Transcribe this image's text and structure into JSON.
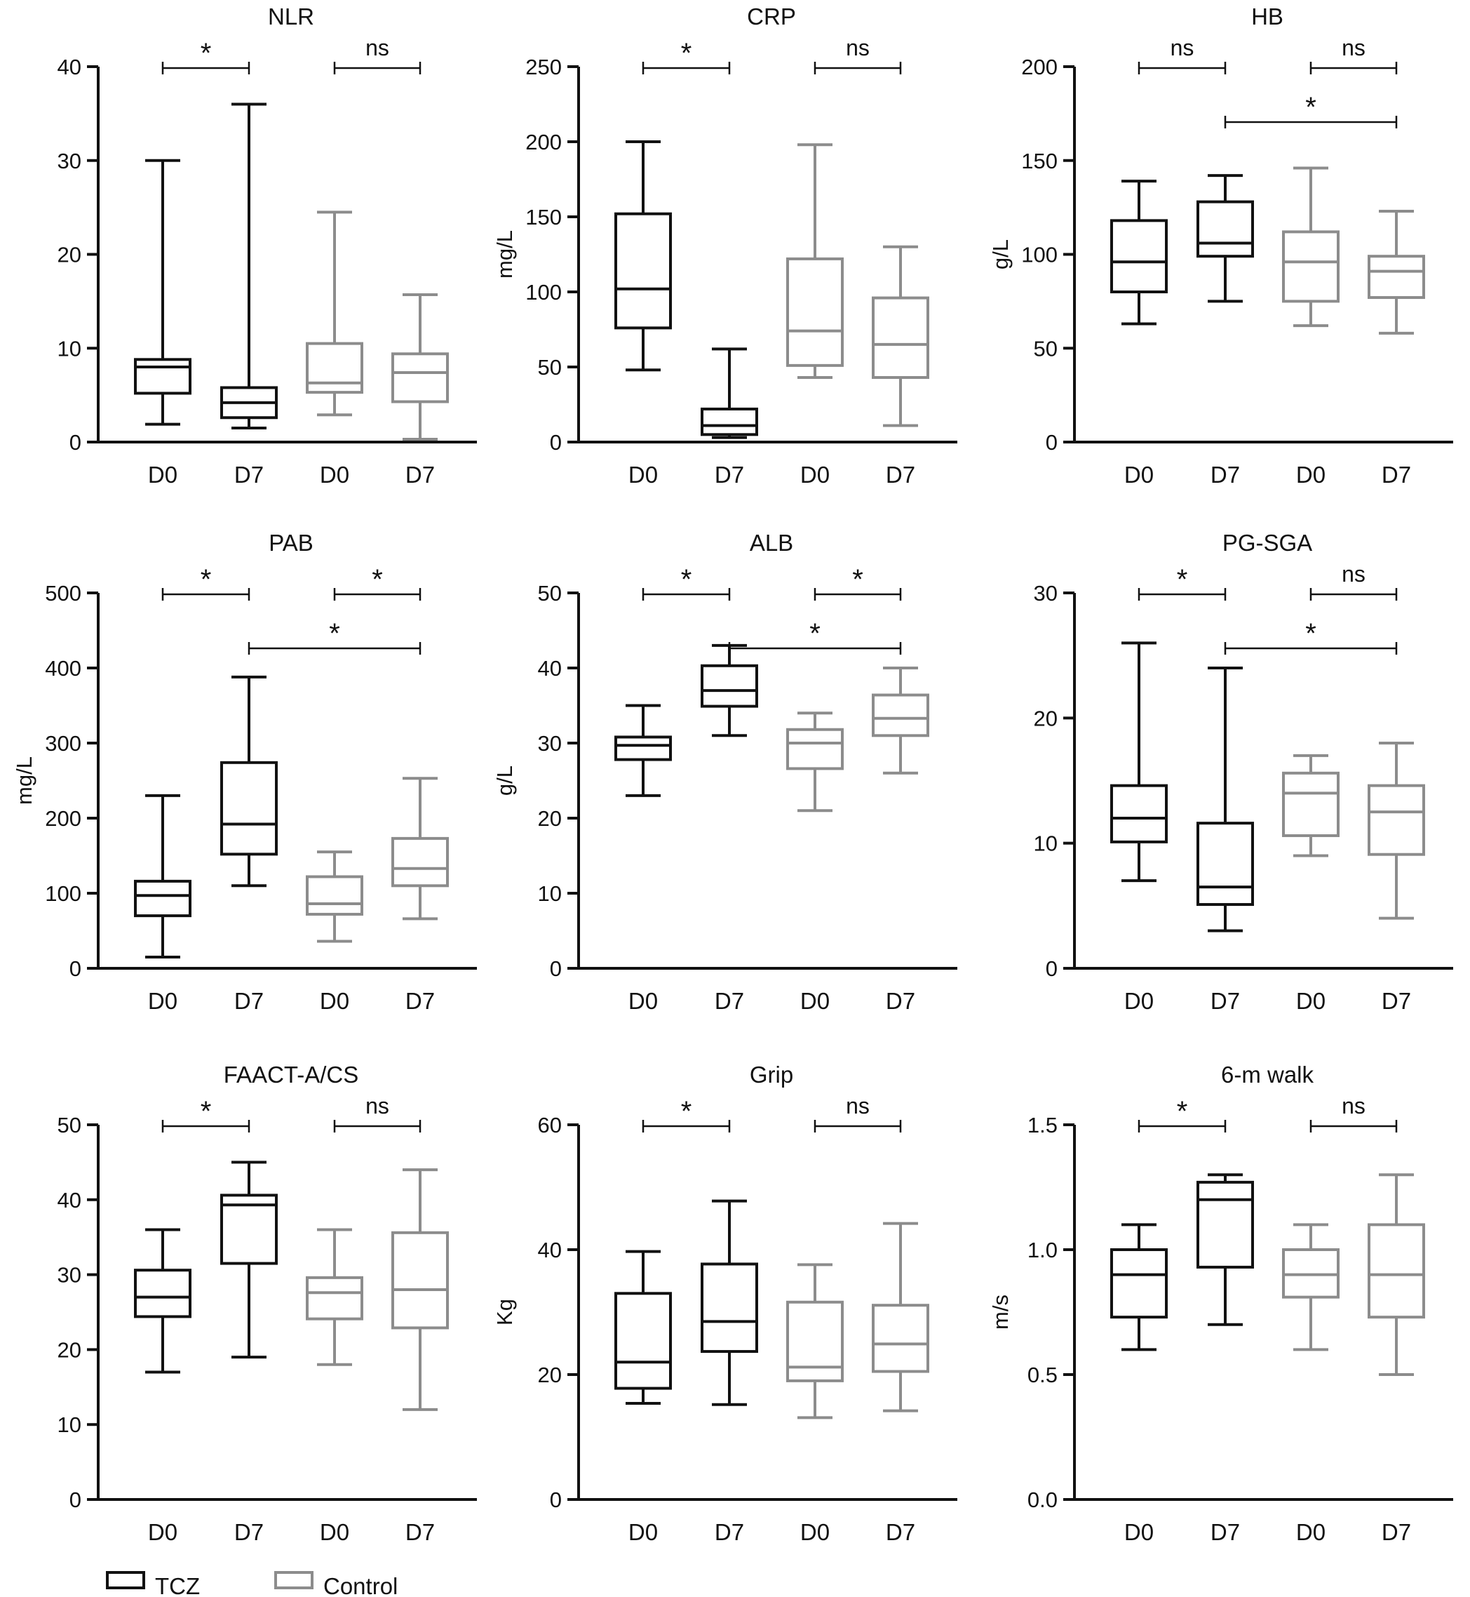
{
  "figure": {
    "legend": [
      {
        "label": "TCZ",
        "color": "#111111"
      },
      {
        "label": "Control",
        "color": "#8c8c8c"
      }
    ]
  },
  "chart_data": [
    {
      "type": "box",
      "title": "NLR",
      "ylabel": "",
      "ylim": [
        0,
        40
      ],
      "yticks": [
        0,
        10,
        20,
        30,
        40
      ],
      "categories": [
        "D0",
        "D7",
        "D0",
        "D7"
      ],
      "groups": [
        "TCZ",
        "TCZ",
        "Control",
        "Control"
      ],
      "boxes": [
        {
          "min": 1.9,
          "q1": 5.2,
          "median": 8.0,
          "q3": 8.8,
          "max": 30
        },
        {
          "min": 1.5,
          "q1": 2.6,
          "median": 4.2,
          "q3": 5.8,
          "max": 36
        },
        {
          "min": 2.9,
          "q1": 5.3,
          "median": 6.3,
          "q3": 10.5,
          "max": 24.5
        },
        {
          "min": 0.3,
          "q1": 4.3,
          "median": 7.4,
          "q3": 9.4,
          "max": 15.7
        }
      ],
      "significance": [
        {
          "from": 0,
          "to": 1,
          "label": "*",
          "level": 0
        },
        {
          "from": 2,
          "to": 3,
          "label": "ns",
          "level": 0
        }
      ]
    },
    {
      "type": "box",
      "title": "CRP",
      "ylabel": "mg/L",
      "ylim": [
        0,
        250
      ],
      "yticks": [
        0,
        50,
        100,
        150,
        200,
        250
      ],
      "categories": [
        "D0",
        "D7",
        "D0",
        "D7"
      ],
      "groups": [
        "TCZ",
        "TCZ",
        "Control",
        "Control"
      ],
      "boxes": [
        {
          "min": 48,
          "q1": 76,
          "median": 102,
          "q3": 152,
          "max": 200
        },
        {
          "min": 3,
          "q1": 5,
          "median": 11,
          "q3": 22,
          "max": 62
        },
        {
          "min": 43,
          "q1": 51,
          "median": 74,
          "q3": 122,
          "max": 198
        },
        {
          "min": 11,
          "q1": 43,
          "median": 65,
          "q3": 96,
          "max": 130
        }
      ],
      "significance": [
        {
          "from": 0,
          "to": 1,
          "label": "*",
          "level": 0
        },
        {
          "from": 2,
          "to": 3,
          "label": "ns",
          "level": 0
        }
      ]
    },
    {
      "type": "box",
      "title": "HB",
      "ylabel": "g/L",
      "ylim": [
        0,
        200
      ],
      "yticks": [
        0,
        50,
        100,
        150,
        200
      ],
      "categories": [
        "D0",
        "D7",
        "D0",
        "D7"
      ],
      "groups": [
        "TCZ",
        "TCZ",
        "Control",
        "Control"
      ],
      "boxes": [
        {
          "min": 63,
          "q1": 80,
          "median": 96,
          "q3": 118,
          "max": 139
        },
        {
          "min": 75,
          "q1": 99,
          "median": 106,
          "q3": 128,
          "max": 142
        },
        {
          "min": 62,
          "q1": 75,
          "median": 96,
          "q3": 112,
          "max": 146
        },
        {
          "min": 58,
          "q1": 77,
          "median": 91,
          "q3": 99,
          "max": 123
        }
      ],
      "significance": [
        {
          "from": 0,
          "to": 1,
          "label": "ns",
          "level": 0
        },
        {
          "from": 2,
          "to": 3,
          "label": "ns",
          "level": 0
        },
        {
          "from": 1,
          "to": 3,
          "label": "*",
          "level": 1
        }
      ]
    },
    {
      "type": "box",
      "title": "PAB",
      "ylabel": "mg/L",
      "ylim": [
        0,
        500
      ],
      "yticks": [
        0,
        100,
        200,
        300,
        400,
        500
      ],
      "categories": [
        "D0",
        "D7",
        "D0",
        "D7"
      ],
      "groups": [
        "TCZ",
        "TCZ",
        "Control",
        "Control"
      ],
      "boxes": [
        {
          "min": 15,
          "q1": 70,
          "median": 97,
          "q3": 116,
          "max": 230
        },
        {
          "min": 110,
          "q1": 152,
          "median": 192,
          "q3": 274,
          "max": 388
        },
        {
          "min": 36,
          "q1": 72,
          "median": 86,
          "q3": 122,
          "max": 155
        },
        {
          "min": 66,
          "q1": 110,
          "median": 133,
          "q3": 173,
          "max": 253
        }
      ],
      "significance": [
        {
          "from": 0,
          "to": 1,
          "label": "*",
          "level": 0
        },
        {
          "from": 2,
          "to": 3,
          "label": "*",
          "level": 0
        },
        {
          "from": 1,
          "to": 3,
          "label": "*",
          "level": 1
        }
      ]
    },
    {
      "type": "box",
      "title": "ALB",
      "ylabel": "g/L",
      "ylim": [
        0,
        50
      ],
      "yticks": [
        0,
        10,
        20,
        30,
        40,
        50
      ],
      "categories": [
        "D0",
        "D7",
        "D0",
        "D7"
      ],
      "groups": [
        "TCZ",
        "TCZ",
        "Control",
        "Control"
      ],
      "boxes": [
        {
          "min": 23,
          "q1": 27.8,
          "median": 29.7,
          "q3": 30.8,
          "max": 35
        },
        {
          "min": 31,
          "q1": 34.9,
          "median": 37,
          "q3": 40.3,
          "max": 43
        },
        {
          "min": 21,
          "q1": 26.6,
          "median": 30,
          "q3": 31.8,
          "max": 34
        },
        {
          "min": 26,
          "q1": 31,
          "median": 33.3,
          "q3": 36.4,
          "max": 40
        }
      ],
      "significance": [
        {
          "from": 0,
          "to": 1,
          "label": "*",
          "level": 0
        },
        {
          "from": 2,
          "to": 3,
          "label": "*",
          "level": 0
        },
        {
          "from": 1,
          "to": 3,
          "label": "*",
          "level": 1
        }
      ]
    },
    {
      "type": "box",
      "title": "PG-SGA",
      "ylabel": "",
      "ylim": [
        0,
        30
      ],
      "yticks": [
        0,
        10,
        20,
        30
      ],
      "categories": [
        "D0",
        "D7",
        "D0",
        "D7"
      ],
      "groups": [
        "TCZ",
        "TCZ",
        "Control",
        "Control"
      ],
      "boxes": [
        {
          "min": 7,
          "q1": 10.1,
          "median": 12,
          "q3": 14.6,
          "max": 26
        },
        {
          "min": 3,
          "q1": 5.1,
          "median": 6.5,
          "q3": 11.6,
          "max": 24
        },
        {
          "min": 9,
          "q1": 10.6,
          "median": 14,
          "q3": 15.6,
          "max": 17
        },
        {
          "min": 4,
          "q1": 9.1,
          "median": 12.5,
          "q3": 14.6,
          "max": 18
        }
      ],
      "significance": [
        {
          "from": 0,
          "to": 1,
          "label": "*",
          "level": 0
        },
        {
          "from": 2,
          "to": 3,
          "label": "ns",
          "level": 0
        },
        {
          "from": 1,
          "to": 3,
          "label": "*",
          "level": 1
        }
      ]
    },
    {
      "type": "box",
      "title": "FAACT-A/CS",
      "ylabel": "",
      "ylim": [
        0,
        50
      ],
      "yticks": [
        0,
        10,
        20,
        30,
        40,
        50
      ],
      "categories": [
        "D0",
        "D7",
        "D0",
        "D7"
      ],
      "groups": [
        "TCZ",
        "TCZ",
        "Control",
        "Control"
      ],
      "boxes": [
        {
          "min": 17,
          "q1": 24.4,
          "median": 27,
          "q3": 30.6,
          "max": 36
        },
        {
          "min": 19,
          "q1": 31.5,
          "median": 39.3,
          "q3": 40.6,
          "max": 45
        },
        {
          "min": 18,
          "q1": 24.1,
          "median": 27.6,
          "q3": 29.6,
          "max": 36
        },
        {
          "min": 12,
          "q1": 22.9,
          "median": 28,
          "q3": 35.6,
          "max": 44
        }
      ],
      "significance": [
        {
          "from": 0,
          "to": 1,
          "label": "*",
          "level": 0
        },
        {
          "from": 2,
          "to": 3,
          "label": "ns",
          "level": 0
        }
      ]
    },
    {
      "type": "box",
      "title": "Grip",
      "ylabel": "Kg",
      "ylim": [
        0,
        60
      ],
      "yticks": [
        0,
        20,
        40,
        60
      ],
      "categories": [
        "D0",
        "D7",
        "D0",
        "D7"
      ],
      "groups": [
        "TCZ",
        "TCZ",
        "Control",
        "Control"
      ],
      "boxes": [
        {
          "min": 15.4,
          "q1": 17.8,
          "median": 22,
          "q3": 33,
          "max": 39.7
        },
        {
          "min": 15.2,
          "q1": 23.7,
          "median": 28.5,
          "q3": 37.7,
          "max": 47.8
        },
        {
          "min": 13.1,
          "q1": 19,
          "median": 21.2,
          "q3": 31.6,
          "max": 37.6
        },
        {
          "min": 14.2,
          "q1": 20.5,
          "median": 24.9,
          "q3": 31.1,
          "max": 44.2
        }
      ],
      "significance": [
        {
          "from": 0,
          "to": 1,
          "label": "*",
          "level": 0
        },
        {
          "from": 2,
          "to": 3,
          "label": "ns",
          "level": 0
        }
      ]
    },
    {
      "type": "box",
      "title": "6-m walk",
      "ylabel": "m/s",
      "ylim": [
        0,
        1.5
      ],
      "yticks": [
        0,
        0.5,
        1,
        1.5
      ],
      "ytick_labels": [
        "0.0",
        "0.5",
        "1.0",
        "1.5"
      ],
      "categories": [
        "D0",
        "D7",
        "D0",
        "D7"
      ],
      "groups": [
        "TCZ",
        "TCZ",
        "Control",
        "Control"
      ],
      "boxes": [
        {
          "min": 0.6,
          "q1": 0.73,
          "median": 0.9,
          "q3": 1.0,
          "max": 1.1
        },
        {
          "min": 0.7,
          "q1": 0.93,
          "median": 1.2,
          "q3": 1.27,
          "max": 1.3
        },
        {
          "min": 0.6,
          "q1": 0.81,
          "median": 0.9,
          "q3": 1.0,
          "max": 1.1
        },
        {
          "min": 0.5,
          "q1": 0.73,
          "median": 0.9,
          "q3": 1.1,
          "max": 1.3
        }
      ],
      "significance": [
        {
          "from": 0,
          "to": 1,
          "label": "*",
          "level": 0
        },
        {
          "from": 2,
          "to": 3,
          "label": "ns",
          "level": 0
        }
      ]
    }
  ]
}
